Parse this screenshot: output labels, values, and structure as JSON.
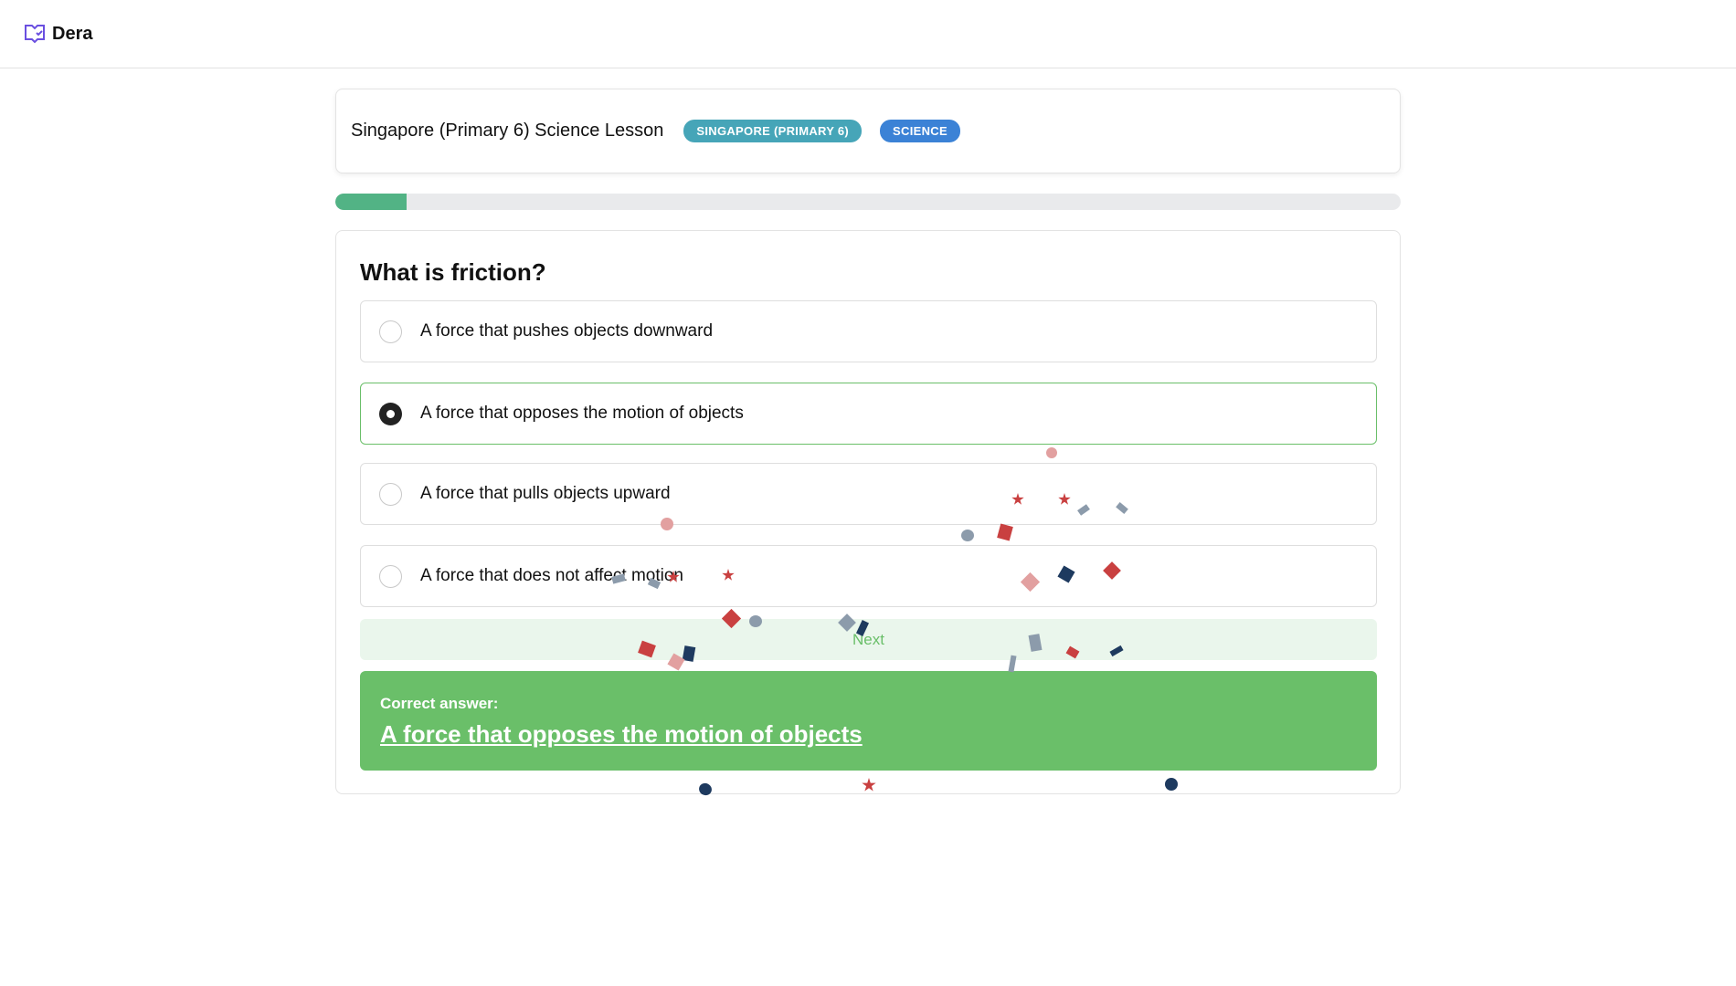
{
  "app": {
    "name": "Dera",
    "logo_icon": "book-check-icon",
    "logo_color": "#6a4fe0"
  },
  "lesson": {
    "title": "Singapore (Primary 6) Science Lesson",
    "badges": [
      {
        "label": "SINGAPORE (PRIMARY 6)",
        "color": "#46a5b8"
      },
      {
        "label": "SCIENCE",
        "color": "#3b82d6"
      }
    ]
  },
  "progress": {
    "percent": 6.7,
    "color": "#52b385"
  },
  "question": {
    "title": "What is friction?",
    "options": [
      {
        "label": "A force that pushes objects downward",
        "selected": false
      },
      {
        "label": "A force that opposes the motion of objects",
        "selected": true
      },
      {
        "label": "A force that pulls objects upward",
        "selected": false
      },
      {
        "label": "A force that does not affect motion",
        "selected": false
      }
    ],
    "next_label": "Next"
  },
  "result": {
    "label": "Correct answer:",
    "answer": "A force that opposes the motion of objects",
    "color": "#6abf69"
  },
  "confetti_colors": [
    "#c94040",
    "#e2a0a0",
    "#1e3a5f",
    "#8c9bab"
  ]
}
